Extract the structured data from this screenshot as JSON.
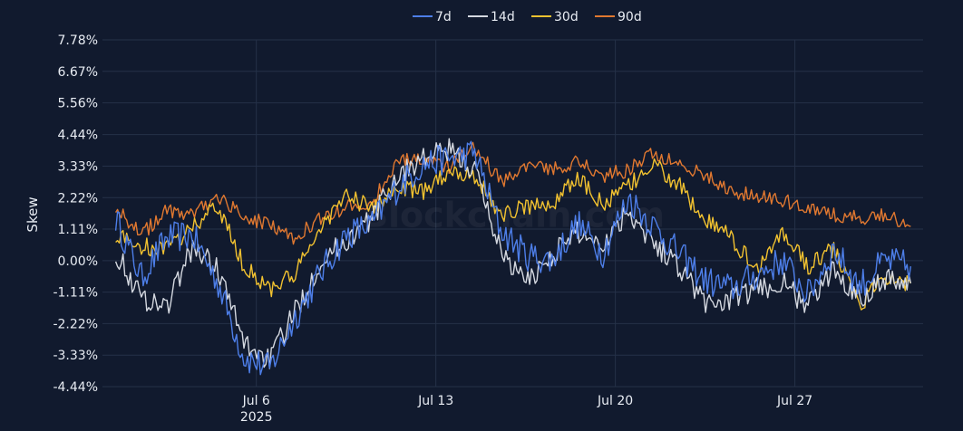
{
  "chart_data": {
    "type": "line",
    "title": "",
    "xlabel": "",
    "ylabel": "Skew",
    "watermark": "Blockchain.com",
    "x_range": [
      "2025-06-30",
      "2025-07-31"
    ],
    "x_ticks": [
      {
        "date": "2025-07-06",
        "label": "Jul 6",
        "sublabel": "2025"
      },
      {
        "date": "2025-07-13",
        "label": "Jul 13",
        "sublabel": ""
      },
      {
        "date": "2025-07-20",
        "label": "Jul 20",
        "sublabel": ""
      },
      {
        "date": "2025-07-27",
        "label": "Jul 27",
        "sublabel": ""
      }
    ],
    "ylim": [
      -4.44,
      7.78
    ],
    "y_ticks": [
      {
        "value": 7.78,
        "label": "7.78%"
      },
      {
        "value": 6.67,
        "label": "6.67%"
      },
      {
        "value": 5.56,
        "label": "5.56%"
      },
      {
        "value": 4.44,
        "label": "4.44%"
      },
      {
        "value": 3.33,
        "label": "3.33%"
      },
      {
        "value": 2.22,
        "label": "2.22%"
      },
      {
        "value": 1.11,
        "label": "1.11%"
      },
      {
        "value": 0.0,
        "label": "0.00%"
      },
      {
        "value": -1.11,
        "label": "-1.11%"
      },
      {
        "value": -2.22,
        "label": "-2.22%"
      },
      {
        "value": -3.33,
        "label": "-3.33%"
      },
      {
        "value": -4.44,
        "label": "-4.44%"
      }
    ],
    "grid": true,
    "legend_position": "top-center",
    "series": [
      {
        "name": "7d",
        "color": "#4d7ee8",
        "points": [
          [
            "2025-06-30",
            1.5
          ],
          [
            "2025-07-01",
            -0.6
          ],
          [
            "2025-07-02",
            0.8
          ],
          [
            "2025-07-03",
            0.9
          ],
          [
            "2025-07-04",
            -0.8
          ],
          [
            "2025-07-05",
            -3.4
          ],
          [
            "2025-07-06",
            -3.8
          ],
          [
            "2025-07-07",
            -2.0
          ],
          [
            "2025-07-08",
            -0.4
          ],
          [
            "2025-07-09",
            0.9
          ],
          [
            "2025-07-10",
            1.3
          ],
          [
            "2025-07-11",
            2.6
          ],
          [
            "2025-07-12",
            3.4
          ],
          [
            "2025-07-13",
            3.6
          ],
          [
            "2025-07-14",
            3.8
          ],
          [
            "2025-07-15",
            1.1
          ],
          [
            "2025-07-16",
            0.2
          ],
          [
            "2025-07-17",
            0.0
          ],
          [
            "2025-07-18",
            1.3
          ],
          [
            "2025-07-19",
            0.3
          ],
          [
            "2025-07-20",
            2.2
          ],
          [
            "2025-07-21",
            1.2
          ],
          [
            "2025-07-22",
            0.2
          ],
          [
            "2025-07-23",
            -0.7
          ],
          [
            "2025-07-24",
            -1.0
          ],
          [
            "2025-07-25",
            -0.5
          ],
          [
            "2025-07-26",
            0.0
          ],
          [
            "2025-07-27",
            -1.2
          ],
          [
            "2025-07-28",
            0.4
          ],
          [
            "2025-07-29",
            -0.9
          ],
          [
            "2025-07-30",
            0.0
          ],
          [
            "2025-07-31",
            -0.2
          ]
        ]
      },
      {
        "name": "14d",
        "color": "#d4d8e0",
        "points": [
          [
            "2025-06-30",
            0.3
          ],
          [
            "2025-07-01",
            -1.3
          ],
          [
            "2025-07-02",
            -1.6
          ],
          [
            "2025-07-03",
            0.5
          ],
          [
            "2025-07-04",
            -0.3
          ],
          [
            "2025-07-05",
            -2.9
          ],
          [
            "2025-07-06",
            -3.5
          ],
          [
            "2025-07-07",
            -1.8
          ],
          [
            "2025-07-08",
            0.0
          ],
          [
            "2025-07-09",
            0.7
          ],
          [
            "2025-07-10",
            1.5
          ],
          [
            "2025-07-11",
            3.0
          ],
          [
            "2025-07-12",
            3.6
          ],
          [
            "2025-07-13",
            3.9
          ],
          [
            "2025-07-14",
            3.2
          ],
          [
            "2025-07-15",
            0.4
          ],
          [
            "2025-07-16",
            -0.8
          ],
          [
            "2025-07-17",
            0.2
          ],
          [
            "2025-07-18",
            1.0
          ],
          [
            "2025-07-19",
            0.6
          ],
          [
            "2025-07-20",
            1.8
          ],
          [
            "2025-07-21",
            0.6
          ],
          [
            "2025-07-22",
            -0.2
          ],
          [
            "2025-07-23",
            -1.5
          ],
          [
            "2025-07-24",
            -1.4
          ],
          [
            "2025-07-25",
            -1.0
          ],
          [
            "2025-07-26",
            -0.8
          ],
          [
            "2025-07-27",
            -1.6
          ],
          [
            "2025-07-28",
            -0.3
          ],
          [
            "2025-07-29",
            -1.3
          ],
          [
            "2025-07-30",
            -0.6
          ],
          [
            "2025-07-31",
            -0.8
          ]
        ]
      },
      {
        "name": "30d",
        "color": "#f2c230",
        "points": [
          [
            "2025-06-30",
            0.9
          ],
          [
            "2025-07-01",
            0.5
          ],
          [
            "2025-07-02",
            0.4
          ],
          [
            "2025-07-03",
            1.2
          ],
          [
            "2025-07-04",
            1.9
          ],
          [
            "2025-07-05",
            -0.2
          ],
          [
            "2025-07-06",
            -1.0
          ],
          [
            "2025-07-07",
            -0.5
          ],
          [
            "2025-07-08",
            1.2
          ],
          [
            "2025-07-09",
            2.3
          ],
          [
            "2025-07-10",
            1.8
          ],
          [
            "2025-07-11",
            2.6
          ],
          [
            "2025-07-12",
            2.4
          ],
          [
            "2025-07-13",
            3.2
          ],
          [
            "2025-07-14",
            3.0
          ],
          [
            "2025-07-15",
            1.6
          ],
          [
            "2025-07-16",
            1.9
          ],
          [
            "2025-07-17",
            2.0
          ],
          [
            "2025-07-18",
            2.9
          ],
          [
            "2025-07-19",
            2.0
          ],
          [
            "2025-07-20",
            2.6
          ],
          [
            "2025-07-21",
            3.4
          ],
          [
            "2025-07-22",
            2.6
          ],
          [
            "2025-07-23",
            1.4
          ],
          [
            "2025-07-24",
            0.8
          ],
          [
            "2025-07-25",
            -0.3
          ],
          [
            "2025-07-26",
            1.0
          ],
          [
            "2025-07-27",
            -0.2
          ],
          [
            "2025-07-28",
            0.4
          ],
          [
            "2025-07-29",
            -1.6
          ],
          [
            "2025-07-30",
            -0.5
          ],
          [
            "2025-07-31",
            -0.8
          ]
        ]
      },
      {
        "name": "90d",
        "color": "#e07830",
        "points": [
          [
            "2025-06-30",
            1.9
          ],
          [
            "2025-07-01",
            0.9
          ],
          [
            "2025-07-02",
            1.8
          ],
          [
            "2025-07-03",
            1.6
          ],
          [
            "2025-07-04",
            2.3
          ],
          [
            "2025-07-05",
            1.5
          ],
          [
            "2025-07-06",
            1.3
          ],
          [
            "2025-07-07",
            0.8
          ],
          [
            "2025-07-08",
            1.5
          ],
          [
            "2025-07-09",
            1.9
          ],
          [
            "2025-07-10",
            2.0
          ],
          [
            "2025-07-11",
            3.6
          ],
          [
            "2025-07-12",
            3.5
          ],
          [
            "2025-07-13",
            3.3
          ],
          [
            "2025-07-14",
            4.0
          ],
          [
            "2025-07-15",
            2.8
          ],
          [
            "2025-07-16",
            3.3
          ],
          [
            "2025-07-17",
            3.2
          ],
          [
            "2025-07-18",
            3.5
          ],
          [
            "2025-07-19",
            3.0
          ],
          [
            "2025-07-20",
            3.2
          ],
          [
            "2025-07-21",
            3.8
          ],
          [
            "2025-07-22",
            3.4
          ],
          [
            "2025-07-23",
            3.0
          ],
          [
            "2025-07-24",
            2.4
          ],
          [
            "2025-07-25",
            2.3
          ],
          [
            "2025-07-26",
            2.1
          ],
          [
            "2025-07-27",
            1.9
          ],
          [
            "2025-07-28",
            1.6
          ],
          [
            "2025-07-29",
            1.5
          ],
          [
            "2025-07-30",
            1.6
          ],
          [
            "2025-07-31",
            1.2
          ]
        ]
      }
    ]
  }
}
